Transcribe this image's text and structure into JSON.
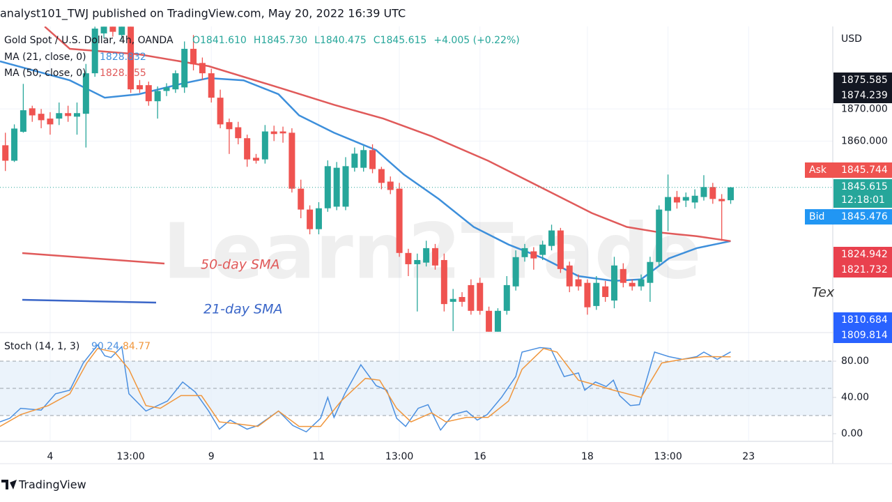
{
  "header": "analyst101_TWJ published on TradingView.com, May 20, 2022 16:39 UTC",
  "legend": {
    "symbol": "Gold Spot / U.S. Dollar, 4h, OANDA",
    "ohlc": [
      "O1841.610",
      "H1845.730",
      "L1840.475",
      "C1845.615",
      "+4.005 (+0.22%)"
    ],
    "ma21": {
      "label": "MA (21, close, 0)",
      "value": "1828.832"
    },
    "ma50": {
      "label": "MA (50, close, 0)",
      "value": "1828.855"
    }
  },
  "annotations": {
    "sma50": "50-day SMA",
    "sma21": "21-day SMA",
    "side_text": "Tex",
    "watermark": "Learn2Trade"
  },
  "price_tags": {
    "currency": "USD",
    "top": [
      "1875.585",
      "1874.239"
    ],
    "ask_label": "Ask",
    "ask": "1845.744",
    "last": "1845.615",
    "countdown": "12:18:01",
    "bid_label": "Bid",
    "bid": "1845.476",
    "red": [
      "1824.942",
      "1821.732"
    ],
    "blue": [
      "1810.684",
      "1809.814"
    ]
  },
  "footer": "TradingView",
  "chart_data": {
    "type": "candlestick",
    "up_color": "#26a69a",
    "down_color": "#ef5350",
    "xlim": [
      -0.6,
      92.4
    ],
    "ylim": [
      1800.65,
      1895.65
    ],
    "xticks": [
      {
        "value": 5,
        "label": "4"
      },
      {
        "value": 14,
        "label": "13:00"
      },
      {
        "value": 23,
        "label": "9"
      },
      {
        "value": 35,
        "label": "11"
      },
      {
        "value": 44,
        "label": "13:00"
      },
      {
        "value": 53,
        "label": "16"
      },
      {
        "value": 65,
        "label": "18"
      },
      {
        "value": 74,
        "label": "13:00"
      },
      {
        "value": 83,
        "label": "23"
      }
    ],
    "yticks": [
      {
        "value": 1870,
        "label": "1870.000"
      },
      {
        "value": 1860,
        "label": "1860.000"
      }
    ],
    "open": [
      1858.7,
      1853.9,
      1862.9,
      1870.2,
      1868.5,
      1867.0,
      1867.0,
      1868.7,
      1867.6,
      1868.5,
      1881.1,
      1893.5,
      1895.6,
      1893.0,
      1895.6,
      1877.4,
      1877.4,
      1872.4,
      1875.6,
      1876.1,
      1876.7,
      1888.7,
      1884.3,
      1881.1,
      1873.5,
      1865.9,
      1864.3,
      1860.9,
      1854.8,
      1854.3,
      1863.0,
      1863.0,
      1862.6,
      1845.2,
      1838.7,
      1832.6,
      1839.1,
      1839.6,
      1839.6,
      1851.7,
      1851.7,
      1857.2,
      1851.3,
      1847.4,
      1845.2,
      1825.2,
      1821.7,
      1822.2,
      1826.7,
      1823.0,
      1810.0,
      1811.5,
      1815.2,
      1815.9,
      1807.2,
      1800.7,
      1807.2,
      1814.8,
      1823.9,
      1825.7,
      1824.6,
      1827.4,
      1832.2,
      1821.3,
      1817.0,
      1815.9,
      1808.7,
      1814.8,
      1810.4,
      1820.2,
      1815.9,
      1814.8,
      1815.9,
      1822.4,
      1838.3,
      1842.6,
      1841.5,
      1840.9,
      1842.6,
      1845.7,
      1842.0,
      1841.61
    ],
    "high": [
      1862.6,
      1865.2,
      1877.8,
      1871.0,
      1870.0,
      1869.0,
      1872.0,
      1871.0,
      1872.0,
      1884.0,
      1895.6,
      1895.6,
      1895.6,
      1895.6,
      1895.6,
      1879.0,
      1878.5,
      1877.0,
      1878.0,
      1882.0,
      1891.0,
      1893.0,
      1886.0,
      1882.5,
      1876.0,
      1867.0,
      1866.0,
      1862.0,
      1856.0,
      1865.0,
      1864.8,
      1864.5,
      1864.0,
      1848.0,
      1840.0,
      1841.0,
      1854.0,
      1853.5,
      1855.0,
      1858.0,
      1858.5,
      1859.0,
      1852.0,
      1849.0,
      1847.0,
      1826.5,
      1825.0,
      1829.0,
      1828.0,
      1825.0,
      1814.0,
      1813.0,
      1817.0,
      1817.5,
      1808.5,
      1808.0,
      1818.0,
      1826.0,
      1828.0,
      1827.0,
      1829.0,
      1834.0,
      1833.0,
      1822.5,
      1818.5,
      1817.0,
      1818.0,
      1816.5,
      1824.0,
      1822.0,
      1817.0,
      1818.5,
      1824.0,
      1840.0,
      1849.6,
      1844.5,
      1844.0,
      1845.0,
      1849.4,
      1847.0,
      1843.5,
      1845.73
    ],
    "low": [
      1850.7,
      1853.5,
      1862.6,
      1866.0,
      1864.0,
      1862.0,
      1865.0,
      1866.0,
      1862.0,
      1858.0,
      1880.0,
      1892.0,
      1892.5,
      1891.5,
      1875.0,
      1875.0,
      1871.0,
      1867.0,
      1874.0,
      1875.0,
      1875.0,
      1882.0,
      1879.0,
      1872.0,
      1864.0,
      1856.0,
      1859.0,
      1852.0,
      1853.0,
      1853.0,
      1860.0,
      1859.5,
      1844.0,
      1836.0,
      1831.0,
      1831.0,
      1838.0,
      1838.5,
      1838.5,
      1850.5,
      1850.5,
      1850.0,
      1845.0,
      1843.5,
      1824.0,
      1818.0,
      1807.0,
      1821.0,
      1820.0,
      1807.0,
      1800.9,
      1808.5,
      1806.0,
      1806.0,
      1800.7,
      1800.7,
      1806.0,
      1813.5,
      1822.5,
      1820.0,
      1823.0,
      1826.0,
      1819.0,
      1813.0,
      1813.5,
      1806.0,
      1807.5,
      1810.0,
      1808.0,
      1814.5,
      1813.5,
      1813.5,
      1810.0,
      1821.0,
      1832.0,
      1839.0,
      1839.5,
      1839.0,
      1841.5,
      1840.5,
      1829.0,
      1840.475
    ],
    "close": [
      1853.9,
      1863.9,
      1869.6,
      1868.0,
      1866.5,
      1865.2,
      1868.7,
      1867.8,
      1868.7,
      1881.1,
      1895.0,
      1895.6,
      1894.0,
      1895.6,
      1876.1,
      1876.1,
      1872.4,
      1875.6,
      1876.7,
      1881.1,
      1888.7,
      1883.9,
      1881.1,
      1873.5,
      1865.2,
      1863.7,
      1860.9,
      1854.3,
      1853.9,
      1863.0,
      1862.2,
      1862.4,
      1845.2,
      1838.7,
      1832.6,
      1839.1,
      1852.2,
      1851.7,
      1852.2,
      1856.1,
      1857.2,
      1851.3,
      1847.0,
      1844.8,
      1825.2,
      1821.7,
      1823.0,
      1826.7,
      1821.3,
      1809.3,
      1810.9,
      1810.0,
      1807.2,
      1807.2,
      1800.7,
      1807.2,
      1815.2,
      1823.9,
      1826.7,
      1823.5,
      1827.8,
      1832.2,
      1820.2,
      1814.8,
      1814.8,
      1808.3,
      1815.9,
      1811.5,
      1821.3,
      1815.9,
      1814.8,
      1817.0,
      1822.4,
      1838.7,
      1842.6,
      1840.9,
      1842.6,
      1843.0,
      1845.7,
      1842.0,
      1841.3,
      1845.615
    ],
    "lines": [
      {
        "name": "MA 21",
        "color": "#3d8fdb",
        "x": [
          -0.6,
          7.2,
          11.1,
          14.9,
          19.6,
          22.7,
          26.6,
          30.5,
          32.8,
          36.7,
          41.4,
          44.5,
          48.4,
          52.3,
          56.2,
          60.1,
          64,
          67.9,
          71,
          74.1,
          77.2,
          81
        ],
        "values": [
          1884.8,
          1878.9,
          1873.5,
          1874.6,
          1877.8,
          1879.6,
          1878.9,
          1874.6,
          1868,
          1862.6,
          1857.2,
          1849.6,
          1842,
          1833.3,
          1827.8,
          1823.5,
          1818,
          1816.5,
          1817,
          1823.5,
          1826.7,
          1828.9
        ]
      },
      {
        "name": "MA 50",
        "color": "#e05a5a",
        "x": [
          4.4,
          7.2,
          14.9,
          22.7,
          30.5,
          36.7,
          42.2,
          47.6,
          53.9,
          60.1,
          65.5,
          69.4,
          73.3,
          77.2,
          81
        ],
        "values": [
          1895.6,
          1888.7,
          1887,
          1883.3,
          1876.7,
          1871.3,
          1867,
          1861.5,
          1853.9,
          1845.2,
          1837.6,
          1833.3,
          1831.5,
          1830.4,
          1828.9
        ]
      }
    ],
    "stoch": {
      "label": "Stoch (14, 1, 3)",
      "k_label": "90.24",
      "d_label": "84.77",
      "ylim": [
        -7.7,
        110.8
      ],
      "yticks": [
        {
          "value": 80,
          "label": "80.00"
        },
        {
          "value": 40,
          "label": "40.00"
        },
        {
          "value": 0,
          "label": "0.00"
        }
      ],
      "band": [
        20,
        80
      ],
      "levels": [
        20,
        50,
        80
      ],
      "band_color": "#e3eefa",
      "k": {
        "color": "#4a8fe0",
        "x": [
          -0.6,
          0.5,
          1.7,
          4.0,
          5.6,
          7.2,
          8.7,
          10.3,
          11.1,
          11.8,
          13.0,
          13.8,
          15.7,
          18.1,
          19.8,
          21.2,
          22.7,
          23.9,
          25.1,
          27.0,
          28.2,
          30.5,
          32.1,
          33.6,
          35.2,
          36.0,
          36.7,
          37.9,
          39.7,
          41.4,
          42.6,
          43.7,
          44.7,
          46.1,
          47.2,
          48.6,
          50.0,
          51.5,
          52.7,
          53.8,
          55.4,
          57.0,
          57.7,
          59.7,
          60.9,
          62.4,
          64.0,
          64.7,
          65.9,
          67.1,
          67.9,
          68.6,
          69.8,
          70.8,
          72.5,
          74.1,
          75.6,
          77.2,
          78.0,
          79.5,
          81
        ],
        "values": [
          13,
          17,
          28,
          26,
          44,
          48,
          78,
          98,
          86,
          84,
          96,
          44,
          25,
          36,
          57,
          46,
          25,
          5,
          15,
          5,
          9,
          25,
          9,
          2,
          17,
          40,
          18,
          44,
          76,
          53,
          48,
          17,
          8,
          28,
          32,
          4,
          21,
          25,
          15,
          21,
          40,
          63,
          90,
          95,
          94,
          63,
          67,
          48,
          57,
          52,
          59,
          42,
          31,
          32,
          90,
          85,
          82,
          85,
          90,
          82,
          90.24
        ]
      },
      "d": {
        "color": "#f0963c",
        "x": [
          -0.6,
          1.7,
          4.8,
          7.2,
          9.1,
          10.3,
          12.2,
          13.8,
          15.7,
          17.3,
          19.6,
          21.9,
          23.9,
          25.8,
          28.2,
          30.5,
          32.8,
          35.2,
          37.5,
          40.2,
          41.8,
          43.7,
          45.3,
          47.6,
          49.2,
          51.5,
          53.9,
          56.2,
          57.7,
          60.1,
          61.6,
          64.0,
          65.5,
          67.9,
          71.0,
          73.3,
          75.6,
          78.0,
          81
        ],
        "values": [
          8,
          21,
          31,
          44,
          78,
          94,
          90,
          71,
          31,
          28,
          42,
          42,
          13,
          11,
          8,
          25,
          8,
          8,
          36,
          61,
          59,
          28,
          13,
          23,
          13,
          18,
          18,
          36,
          71,
          94,
          90,
          59,
          55,
          48,
          40,
          78,
          82,
          85,
          84.77
        ]
      }
    }
  }
}
